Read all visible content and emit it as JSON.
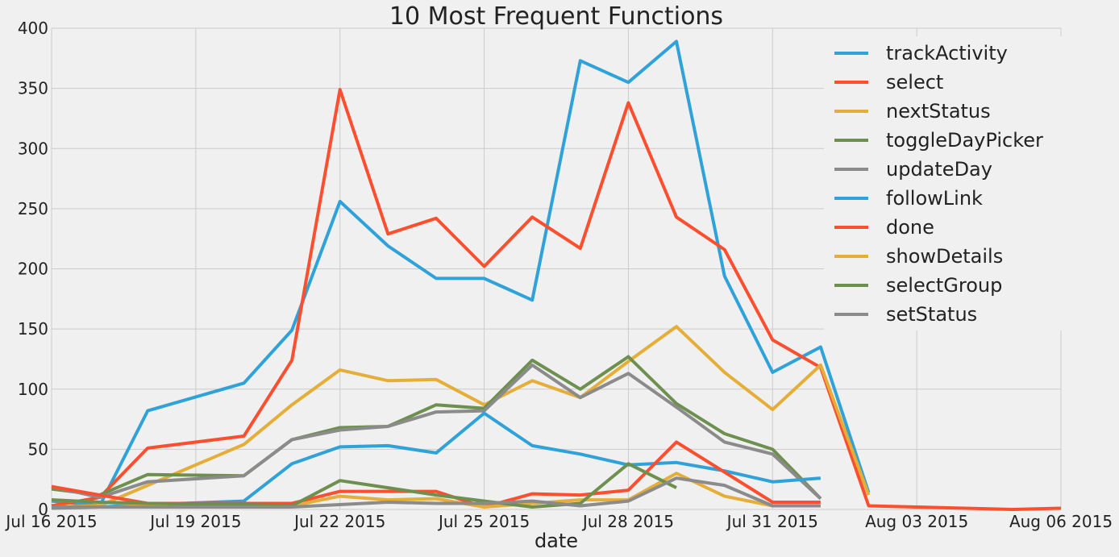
{
  "chart_data": {
    "type": "line",
    "title": "10 Most Frequent Functions",
    "xlabel": "date",
    "ylabel": "",
    "ylim": [
      0,
      400
    ],
    "yticks": [
      0,
      50,
      100,
      150,
      200,
      250,
      300,
      350,
      400
    ],
    "xlim": [
      "2015-07-16",
      "2015-08-06"
    ],
    "xticks": [
      {
        "date": "2015-07-16",
        "label": "Jul 16 2015"
      },
      {
        "date": "2015-07-19",
        "label": "Jul 19 2015"
      },
      {
        "date": "2015-07-22",
        "label": "Jul 22 2015"
      },
      {
        "date": "2015-07-25",
        "label": "Jul 25 2015"
      },
      {
        "date": "2015-07-28",
        "label": "Jul 28 2015"
      },
      {
        "date": "2015-07-31",
        "label": "Jul 31 2015"
      },
      {
        "date": "2015-08-03",
        "label": "Aug 03 2015"
      },
      {
        "date": "2015-08-06",
        "label": "Aug 06 2015"
      }
    ],
    "grid": true,
    "legend_position": "top-right",
    "series": [
      {
        "name": "trackActivity",
        "color": "#30a2da",
        "points": [
          [
            "2015-07-16",
            7
          ],
          [
            "2015-07-17",
            3
          ],
          [
            "2015-07-18",
            82
          ],
          [
            "2015-07-20",
            105
          ],
          [
            "2015-07-21",
            149
          ],
          [
            "2015-07-22",
            256
          ],
          [
            "2015-07-23",
            219
          ],
          [
            "2015-07-24",
            192
          ],
          [
            "2015-07-25",
            192
          ],
          [
            "2015-07-26",
            174
          ],
          [
            "2015-07-27",
            373
          ],
          [
            "2015-07-28",
            355
          ],
          [
            "2015-07-29",
            389
          ],
          [
            "2015-07-30",
            194
          ],
          [
            "2015-07-31",
            114
          ],
          [
            "2015-08-01",
            135
          ],
          [
            "2015-08-02",
            14
          ]
        ]
      },
      {
        "name": "select",
        "color": "#fc4f30",
        "points": [
          [
            "2015-07-16",
            3
          ],
          [
            "2015-07-17",
            10
          ],
          [
            "2015-07-18",
            51
          ],
          [
            "2015-07-20",
            61
          ],
          [
            "2015-07-21",
            124
          ],
          [
            "2015-07-22",
            349
          ],
          [
            "2015-07-23",
            229
          ],
          [
            "2015-07-24",
            242
          ],
          [
            "2015-07-25",
            202
          ],
          [
            "2015-07-26",
            243
          ],
          [
            "2015-07-27",
            217
          ],
          [
            "2015-07-28",
            338
          ],
          [
            "2015-07-29",
            243
          ],
          [
            "2015-07-30",
            216
          ],
          [
            "2015-07-31",
            141
          ],
          [
            "2015-08-01",
            118
          ],
          [
            "2015-08-02",
            3
          ],
          [
            "2015-08-03",
            2
          ],
          [
            "2015-08-05",
            0
          ],
          [
            "2015-08-06",
            1
          ]
        ]
      },
      {
        "name": "nextStatus",
        "color": "#e5ae38",
        "points": [
          [
            "2015-07-16",
            2
          ],
          [
            "2015-07-17",
            3
          ],
          [
            "2015-07-18",
            20
          ],
          [
            "2015-07-20",
            54
          ],
          [
            "2015-07-21",
            87
          ],
          [
            "2015-07-22",
            116
          ],
          [
            "2015-07-23",
            107
          ],
          [
            "2015-07-24",
            108
          ],
          [
            "2015-07-25",
            87
          ],
          [
            "2015-07-26",
            107
          ],
          [
            "2015-07-27",
            93
          ],
          [
            "2015-07-28",
            123
          ],
          [
            "2015-07-29",
            152
          ],
          [
            "2015-07-30",
            114
          ],
          [
            "2015-07-31",
            83
          ],
          [
            "2015-08-01",
            120
          ],
          [
            "2015-08-02",
            12
          ]
        ]
      },
      {
        "name": "toggleDayPicker",
        "color": "#6d904f",
        "points": [
          [
            "2015-07-16",
            17
          ],
          [
            "2015-07-17",
            12
          ],
          [
            "2015-07-18",
            29
          ],
          [
            "2015-07-20",
            28
          ],
          [
            "2015-07-21",
            58
          ],
          [
            "2015-07-22",
            68
          ],
          [
            "2015-07-23",
            69
          ],
          [
            "2015-07-24",
            87
          ],
          [
            "2015-07-25",
            84
          ],
          [
            "2015-07-26",
            124
          ],
          [
            "2015-07-27",
            100
          ],
          [
            "2015-07-28",
            127
          ],
          [
            "2015-07-29",
            88
          ],
          [
            "2015-07-30",
            63
          ],
          [
            "2015-07-31",
            50
          ],
          [
            "2015-08-01",
            9
          ]
        ]
      },
      {
        "name": "updateDay",
        "color": "#8b8b8b",
        "points": [
          [
            "2015-07-16",
            19
          ],
          [
            "2015-07-17",
            10
          ],
          [
            "2015-07-18",
            23
          ],
          [
            "2015-07-20",
            28
          ],
          [
            "2015-07-21",
            58
          ],
          [
            "2015-07-22",
            66
          ],
          [
            "2015-07-23",
            69
          ],
          [
            "2015-07-24",
            81
          ],
          [
            "2015-07-25",
            82
          ],
          [
            "2015-07-26",
            120
          ],
          [
            "2015-07-27",
            93
          ],
          [
            "2015-07-28",
            113
          ],
          [
            "2015-07-29",
            85
          ],
          [
            "2015-07-30",
            56
          ],
          [
            "2015-07-31",
            46
          ],
          [
            "2015-08-01",
            9
          ]
        ]
      },
      {
        "name": "followLink",
        "color": "#30a2da",
        "points": [
          [
            "2015-07-16",
            2
          ],
          [
            "2015-07-17",
            2
          ],
          [
            "2015-07-18",
            4
          ],
          [
            "2015-07-20",
            7
          ],
          [
            "2015-07-21",
            38
          ],
          [
            "2015-07-22",
            52
          ],
          [
            "2015-07-23",
            53
          ],
          [
            "2015-07-24",
            47
          ],
          [
            "2015-07-25",
            80
          ],
          [
            "2015-07-26",
            53
          ],
          [
            "2015-07-27",
            46
          ],
          [
            "2015-07-28",
            37
          ],
          [
            "2015-07-29",
            39
          ],
          [
            "2015-07-30",
            32
          ],
          [
            "2015-07-31",
            23
          ],
          [
            "2015-08-01",
            26
          ]
        ]
      },
      {
        "name": "done",
        "color": "#fc4f30",
        "points": [
          [
            "2015-07-16",
            19
          ],
          [
            "2015-07-17",
            12
          ],
          [
            "2015-07-18",
            5
          ],
          [
            "2015-07-20",
            5
          ],
          [
            "2015-07-21",
            5
          ],
          [
            "2015-07-22",
            15
          ],
          [
            "2015-07-23",
            15
          ],
          [
            "2015-07-24",
            15
          ],
          [
            "2015-07-25",
            2
          ],
          [
            "2015-07-26",
            13
          ],
          [
            "2015-07-27",
            12
          ],
          [
            "2015-07-28",
            16
          ],
          [
            "2015-07-29",
            56
          ],
          [
            "2015-07-30",
            31
          ],
          [
            "2015-07-31",
            6
          ],
          [
            "2015-08-01",
            6
          ]
        ]
      },
      {
        "name": "showDetails",
        "color": "#e5ae38",
        "points": [
          [
            "2015-07-16",
            8
          ],
          [
            "2015-07-17",
            6
          ],
          [
            "2015-07-18",
            4
          ],
          [
            "2015-07-20",
            3
          ],
          [
            "2015-07-21",
            3
          ],
          [
            "2015-07-22",
            11
          ],
          [
            "2015-07-23",
            8
          ],
          [
            "2015-07-24",
            9
          ],
          [
            "2015-07-25",
            2
          ],
          [
            "2015-07-26",
            5
          ],
          [
            "2015-07-27",
            8
          ],
          [
            "2015-07-28",
            8
          ],
          [
            "2015-07-29",
            30
          ],
          [
            "2015-07-30",
            11
          ],
          [
            "2015-07-31",
            3
          ],
          [
            "2015-08-01",
            3
          ]
        ]
      },
      {
        "name": "selectGroup",
        "color": "#6d904f",
        "points": [
          [
            "2015-07-16",
            8
          ],
          [
            "2015-07-17",
            6
          ],
          [
            "2015-07-18",
            5
          ],
          [
            "2015-07-20",
            4
          ],
          [
            "2015-07-21",
            3
          ],
          [
            "2015-07-22",
            24
          ],
          [
            "2015-07-23",
            18
          ],
          [
            "2015-07-24",
            12
          ],
          [
            "2015-07-25",
            7
          ],
          [
            "2015-07-26",
            2
          ],
          [
            "2015-07-27",
            5
          ],
          [
            "2015-07-28",
            38
          ],
          [
            "2015-07-29",
            18
          ]
        ]
      },
      {
        "name": "setStatus",
        "color": "#8b8b8b",
        "points": [
          [
            "2015-07-16",
            1
          ],
          [
            "2015-07-17",
            2
          ],
          [
            "2015-07-18",
            2
          ],
          [
            "2015-07-20",
            2
          ],
          [
            "2015-07-21",
            2
          ],
          [
            "2015-07-22",
            4
          ],
          [
            "2015-07-23",
            6
          ],
          [
            "2015-07-24",
            5
          ],
          [
            "2015-07-25",
            5
          ],
          [
            "2015-07-26",
            7
          ],
          [
            "2015-07-27",
            3
          ],
          [
            "2015-07-28",
            7
          ],
          [
            "2015-07-29",
            26
          ],
          [
            "2015-07-30",
            20
          ],
          [
            "2015-07-31",
            3
          ],
          [
            "2015-08-01",
            3
          ]
        ]
      }
    ]
  }
}
